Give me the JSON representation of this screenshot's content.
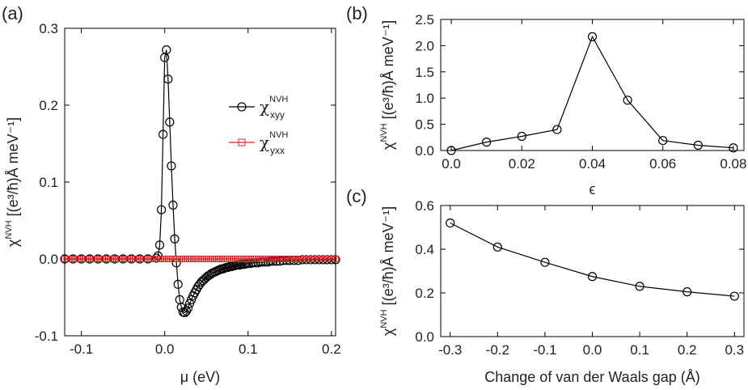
{
  "chart_data": [
    {
      "panel": "(a)",
      "type": "line",
      "xlabel": "μ (eV)",
      "ylabel": {
        "base": "χ",
        "sup": "NVH",
        "units": " [(e³/ħ)Å meV⁻¹]"
      },
      "xlim": [
        -0.12,
        0.205
      ],
      "ylim": [
        -0.1,
        0.3
      ],
      "xticks": [
        "-0.1",
        "0.0",
        "0.1",
        "0.2"
      ],
      "yticks": [
        "-0.1",
        "0.0",
        "0.1",
        "0.2",
        "0.3"
      ],
      "legend": {
        "position": "right",
        "entries": [
          {
            "base": "χ",
            "sub": "xyy",
            "sup": "NVH"
          },
          {
            "base": "χ",
            "sub": "yxx",
            "sup": "NVH"
          }
        ]
      },
      "series": [
        {
          "name": "xyy",
          "color": "#000000",
          "marker": "circle",
          "x": [
            -0.12,
            -0.11,
            -0.1,
            -0.09,
            -0.08,
            -0.07,
            -0.06,
            -0.05,
            -0.04,
            -0.03,
            -0.02,
            -0.01,
            -0.008,
            -0.006,
            -0.004,
            -0.002,
            0.0,
            0.002,
            0.004,
            0.006,
            0.008,
            0.01,
            0.012,
            0.014,
            0.016,
            0.018,
            0.02,
            0.022,
            0.024,
            0.026,
            0.028,
            0.03,
            0.032,
            0.034,
            0.036,
            0.038,
            0.04,
            0.042,
            0.044,
            0.046,
            0.048,
            0.05,
            0.052,
            0.054,
            0.056,
            0.058,
            0.06,
            0.062,
            0.064,
            0.066,
            0.068,
            0.07,
            0.072,
            0.074,
            0.076,
            0.078,
            0.08,
            0.082,
            0.084,
            0.086,
            0.088,
            0.09,
            0.092,
            0.094,
            0.096,
            0.098,
            0.1,
            0.103,
            0.106,
            0.109,
            0.112,
            0.115,
            0.118,
            0.121,
            0.124,
            0.127,
            0.13,
            0.134,
            0.138,
            0.142,
            0.146,
            0.15,
            0.155,
            0.16,
            0.165,
            0.17,
            0.175,
            0.18,
            0.185,
            0.19,
            0.195,
            0.2,
            0.205
          ],
          "y": [
            0,
            0,
            0,
            0,
            0,
            0,
            0,
            0,
            0,
            0,
            0,
            0.001,
            0.004,
            0.018,
            0.064,
            0.162,
            0.262,
            0.272,
            0.234,
            0.178,
            0.121,
            0.07,
            0.026,
            -0.005,
            -0.033,
            -0.053,
            -0.063,
            -0.069,
            -0.07,
            -0.068,
            -0.064,
            -0.058,
            -0.053,
            -0.048,
            -0.044,
            -0.04,
            -0.036,
            -0.033,
            -0.03,
            -0.028,
            -0.026,
            -0.024,
            -0.022,
            -0.021,
            -0.019,
            -0.018,
            -0.017,
            -0.016,
            -0.015,
            -0.014,
            -0.013,
            -0.013,
            -0.012,
            -0.011,
            -0.011,
            -0.01,
            -0.01,
            -0.009,
            -0.009,
            -0.008,
            -0.008,
            -0.008,
            -0.007,
            -0.007,
            -0.007,
            -0.006,
            -0.006,
            -0.006,
            -0.005,
            -0.005,
            -0.005,
            -0.004,
            -0.004,
            -0.004,
            -0.004,
            -0.003,
            -0.003,
            -0.003,
            -0.003,
            -0.002,
            -0.002,
            -0.002,
            -0.002,
            -0.002,
            -0.001,
            -0.001,
            -0.001,
            -0.001,
            -0.001,
            -0.001,
            -0.001,
            -0.001,
            -0.001
          ]
        },
        {
          "name": "yxx",
          "color": "#d62728",
          "marker": "square",
          "step": 0.0025,
          "x_range": [
            -0.12,
            0.205
          ],
          "y_const": 0.0
        }
      ]
    },
    {
      "panel": "(b)",
      "type": "line",
      "xlabel": "ϵ",
      "ylabel": {
        "base": "χ",
        "sup": "NVH",
        "units": " [(e³/ħ)Å meV⁻¹]"
      },
      "xlim": [
        -0.003,
        0.083
      ],
      "ylim": [
        0,
        2.5
      ],
      "xticks": [
        "0.0",
        "0.02",
        "0.04",
        "0.06",
        "0.08"
      ],
      "yticks": [
        "0.0",
        "0.5",
        "1.0",
        "1.5",
        "2.0",
        "2.5"
      ],
      "series": [
        {
          "name": "b",
          "color": "#000000",
          "marker": "circle",
          "x": [
            0.0,
            0.01,
            0.02,
            0.03,
            0.04,
            0.05,
            0.06,
            0.07,
            0.08
          ],
          "y": [
            0.0,
            0.16,
            0.27,
            0.4,
            2.17,
            0.96,
            0.19,
            0.1,
            0.05
          ]
        }
      ]
    },
    {
      "panel": "(c)",
      "type": "line",
      "xlabel": "Change of van der Waals gap (Å)",
      "ylabel": {
        "base": "χ",
        "sup": "NVH",
        "units": " [(e³/ħ)Å meV⁻¹]"
      },
      "xlim": [
        -0.32,
        0.32
      ],
      "ylim": [
        0,
        0.6
      ],
      "xticks": [
        "-0.3",
        "-0.2",
        "-0.1",
        "0.0",
        "0.1",
        "0.2",
        "0.3"
      ],
      "yticks": [
        "0.0",
        "0.2",
        "0.4",
        "0.6"
      ],
      "series": [
        {
          "name": "c",
          "color": "#000000",
          "marker": "circle",
          "x": [
            -0.3,
            -0.2,
            -0.1,
            0.0,
            0.1,
            0.2,
            0.3
          ],
          "y": [
            0.52,
            0.41,
            0.34,
            0.275,
            0.23,
            0.205,
            0.185
          ]
        }
      ]
    }
  ]
}
